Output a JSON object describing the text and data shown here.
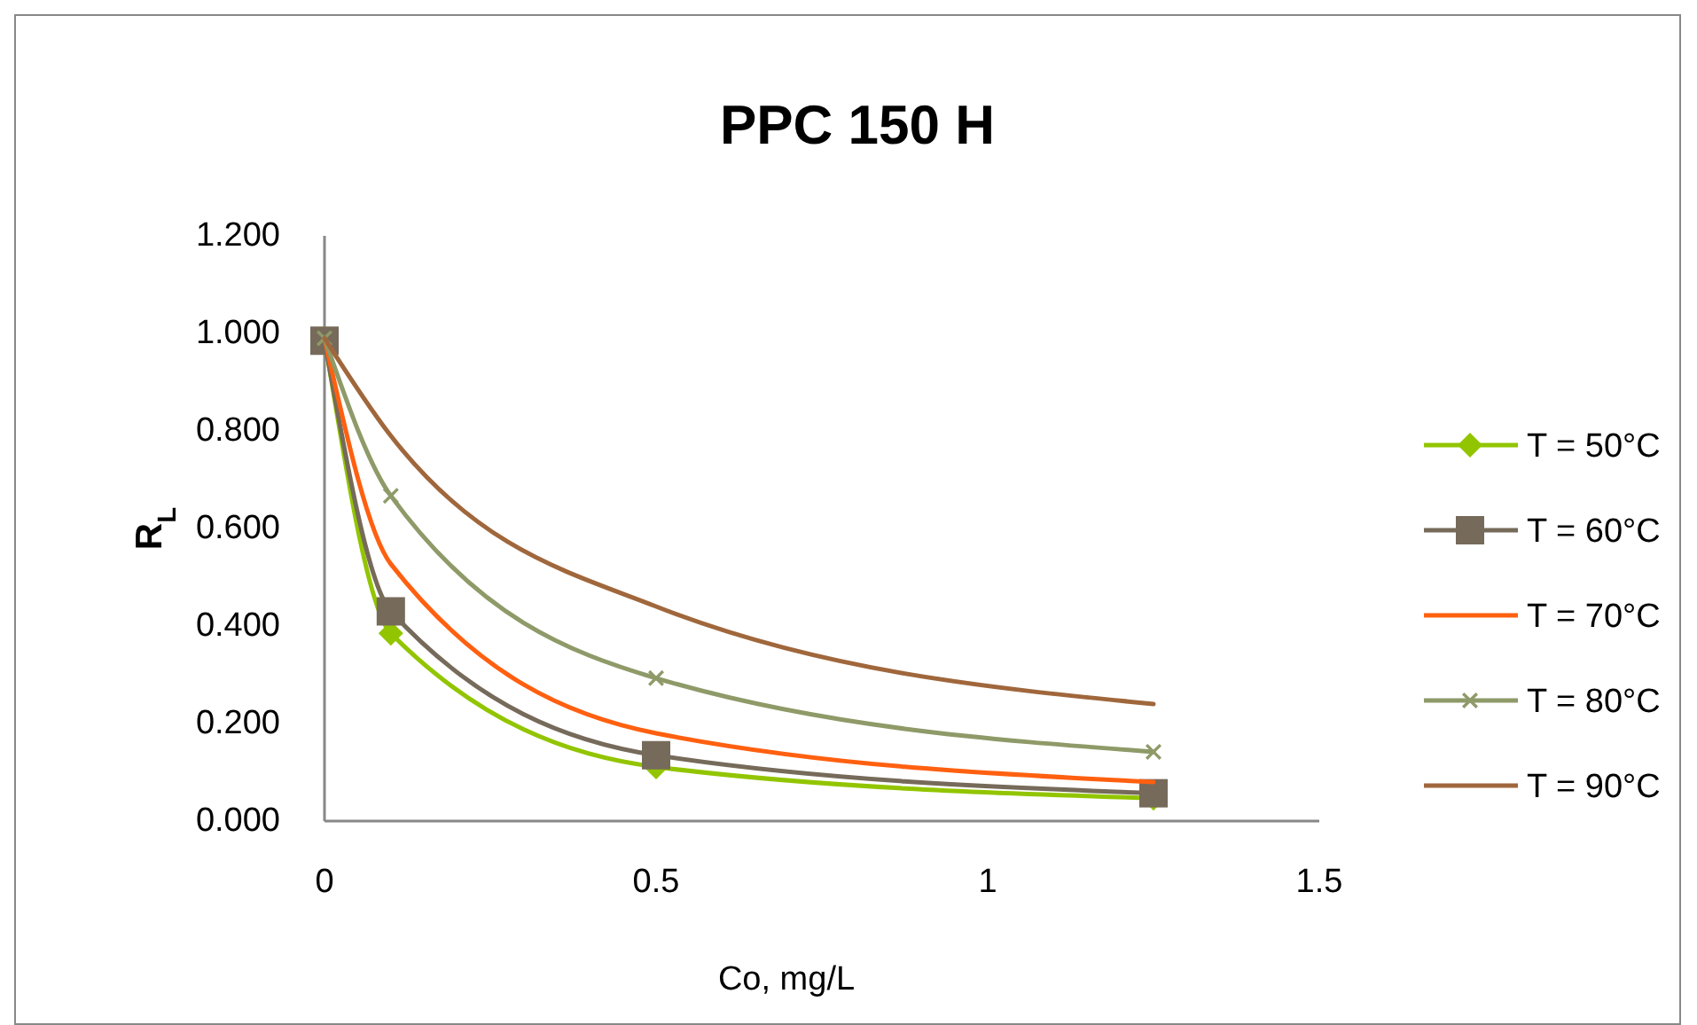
{
  "chart_data": {
    "type": "line",
    "title": "PPC 150 H",
    "xlabel": "Co, mg/L",
    "ylabel": "R$_{L}$",
    "x": [
      0,
      0.1,
      0.5,
      1.25
    ],
    "xlim": [
      0,
      1.5
    ],
    "xticks": [
      0,
      0.5,
      1,
      1.5
    ],
    "ylim": [
      0,
      1.2
    ],
    "yticks": [
      {
        "value": 0,
        "label": "0.000"
      },
      {
        "value": 0.2,
        "label": "0.200"
      },
      {
        "value": 0.4,
        "label": "0.400"
      },
      {
        "value": 0.6,
        "label": "0.600"
      },
      {
        "value": 0.8,
        "label": "0.800"
      },
      {
        "value": 1,
        "label": "1.000"
      },
      {
        "value": 1.2,
        "label": "1.200"
      }
    ],
    "grid": false,
    "legend": "right",
    "line_style": "solid",
    "series": [
      {
        "name": "T = 50°C",
        "color": "#92c500",
        "marker": "diamond",
        "values": [
          0.99,
          0.385,
          0.111,
          0.047
        ]
      },
      {
        "name": "T = 60°C",
        "color": "#766a5a",
        "marker": "square",
        "values": [
          0.985,
          0.43,
          0.135,
          0.057
        ]
      },
      {
        "name": "T = 70°C",
        "color": "#ff6010",
        "marker": "none",
        "values": [
          0.99,
          0.527,
          0.18,
          0.08
        ]
      },
      {
        "name": "T = 80°C",
        "color": "#8e9a68",
        "marker": "cross",
        "values": [
          0.99,
          0.667,
          0.293,
          0.142
        ]
      },
      {
        "name": "T = 90°C",
        "color": "#a0673c",
        "marker": "none",
        "values": [
          0.99,
          0.79,
          0.44,
          0.24
        ]
      }
    ]
  }
}
